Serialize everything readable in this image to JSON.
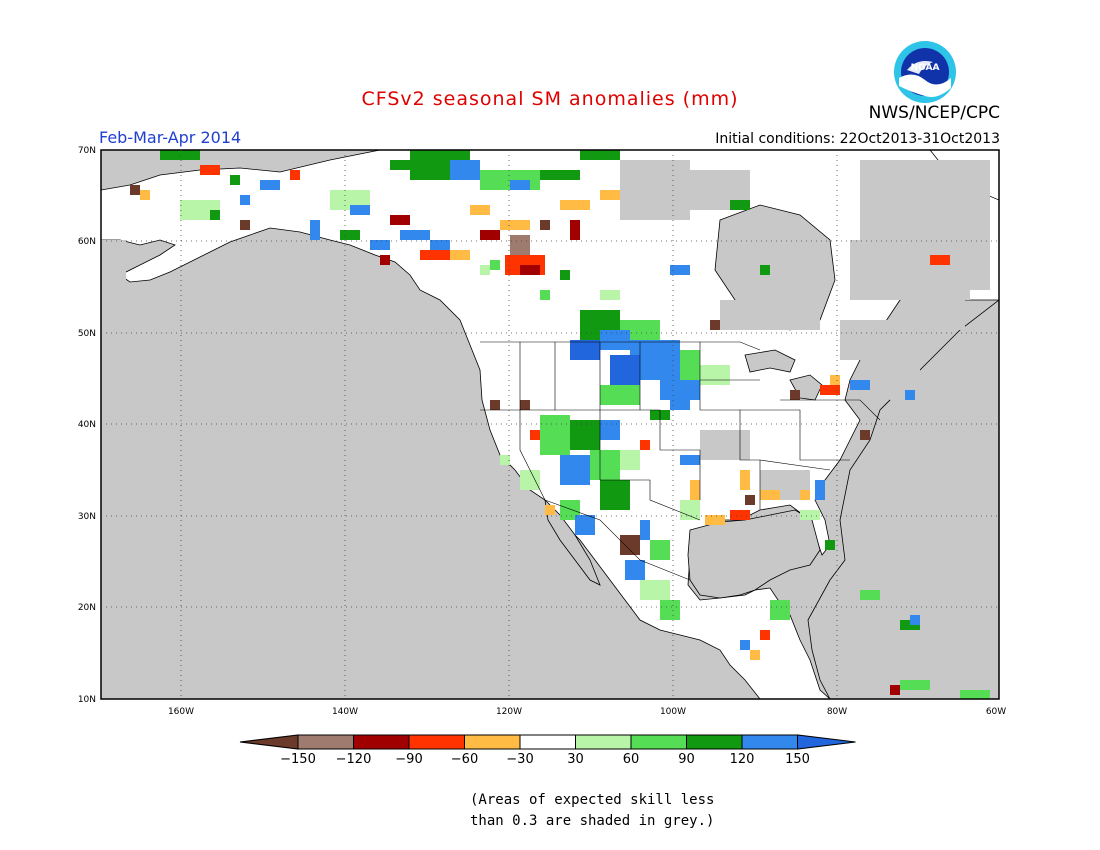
{
  "title": "CFSv2 seasonal SM anomalies (mm)",
  "season": "Feb-Mar-Apr 2014",
  "initial_conditions": "Initial conditions: 22Oct2013-31Oct2013",
  "agency": "NWS/NCEP/CPC",
  "logo_text": "NOAA",
  "lat_labels": [
    "70N",
    "60N",
    "50N",
    "40N",
    "30N",
    "20N",
    "10N"
  ],
  "lon_labels": [
    "160W",
    "140W",
    "120W",
    "100W",
    "80W",
    "60W"
  ],
  "colorbar": {
    "colors": [
      "#6b3a2a",
      "#9e7b6e",
      "#a00000",
      "#ff3300",
      "#ffbb44",
      "#ffffff",
      "#b8f5a8",
      "#55dd55",
      "#119911",
      "#3388ee",
      "#2266dd"
    ],
    "labels": [
      "-150",
      "-120",
      "-90",
      "-60",
      "-30",
      "30",
      "60",
      "90",
      "120",
      "150"
    ]
  },
  "colors": {
    "grey_mask": "#c8c8c8",
    "ocean_grey": "#c8c8c8",
    "land": "#ffffff",
    "title_red": "#e00000",
    "season_blue": "#2040d0"
  },
  "note": [
    "(Areas of expected skill less",
    "than 0.3 are shaded in grey.)"
  ]
}
